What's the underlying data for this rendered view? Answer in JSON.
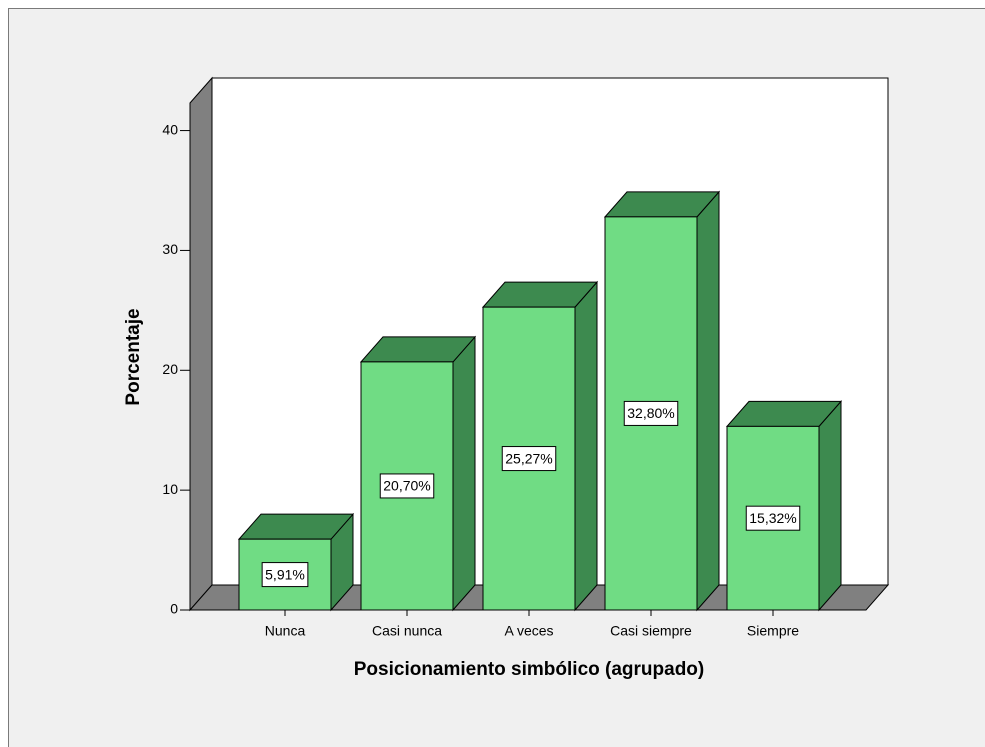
{
  "chart_data": {
    "type": "bar3d",
    "x_label": "Posicionamiento simbólico (agrupado)",
    "y_label": "Porcentaje",
    "categories": [
      "Nunca",
      "Casi nunca",
      "A veces",
      "Casi siempre",
      "Siempre"
    ],
    "values": [
      5.91,
      20.7,
      25.27,
      32.8,
      15.32
    ],
    "value_labels": [
      "5,91%",
      "20,70%",
      "25,27%",
      "32,80%",
      "15,32%"
    ],
    "color": "#70dc84",
    "shade_color": "#3d8a4f",
    "ylim": [
      0,
      42.3
    ],
    "yticks": [
      0,
      10,
      20,
      30,
      40
    ]
  }
}
